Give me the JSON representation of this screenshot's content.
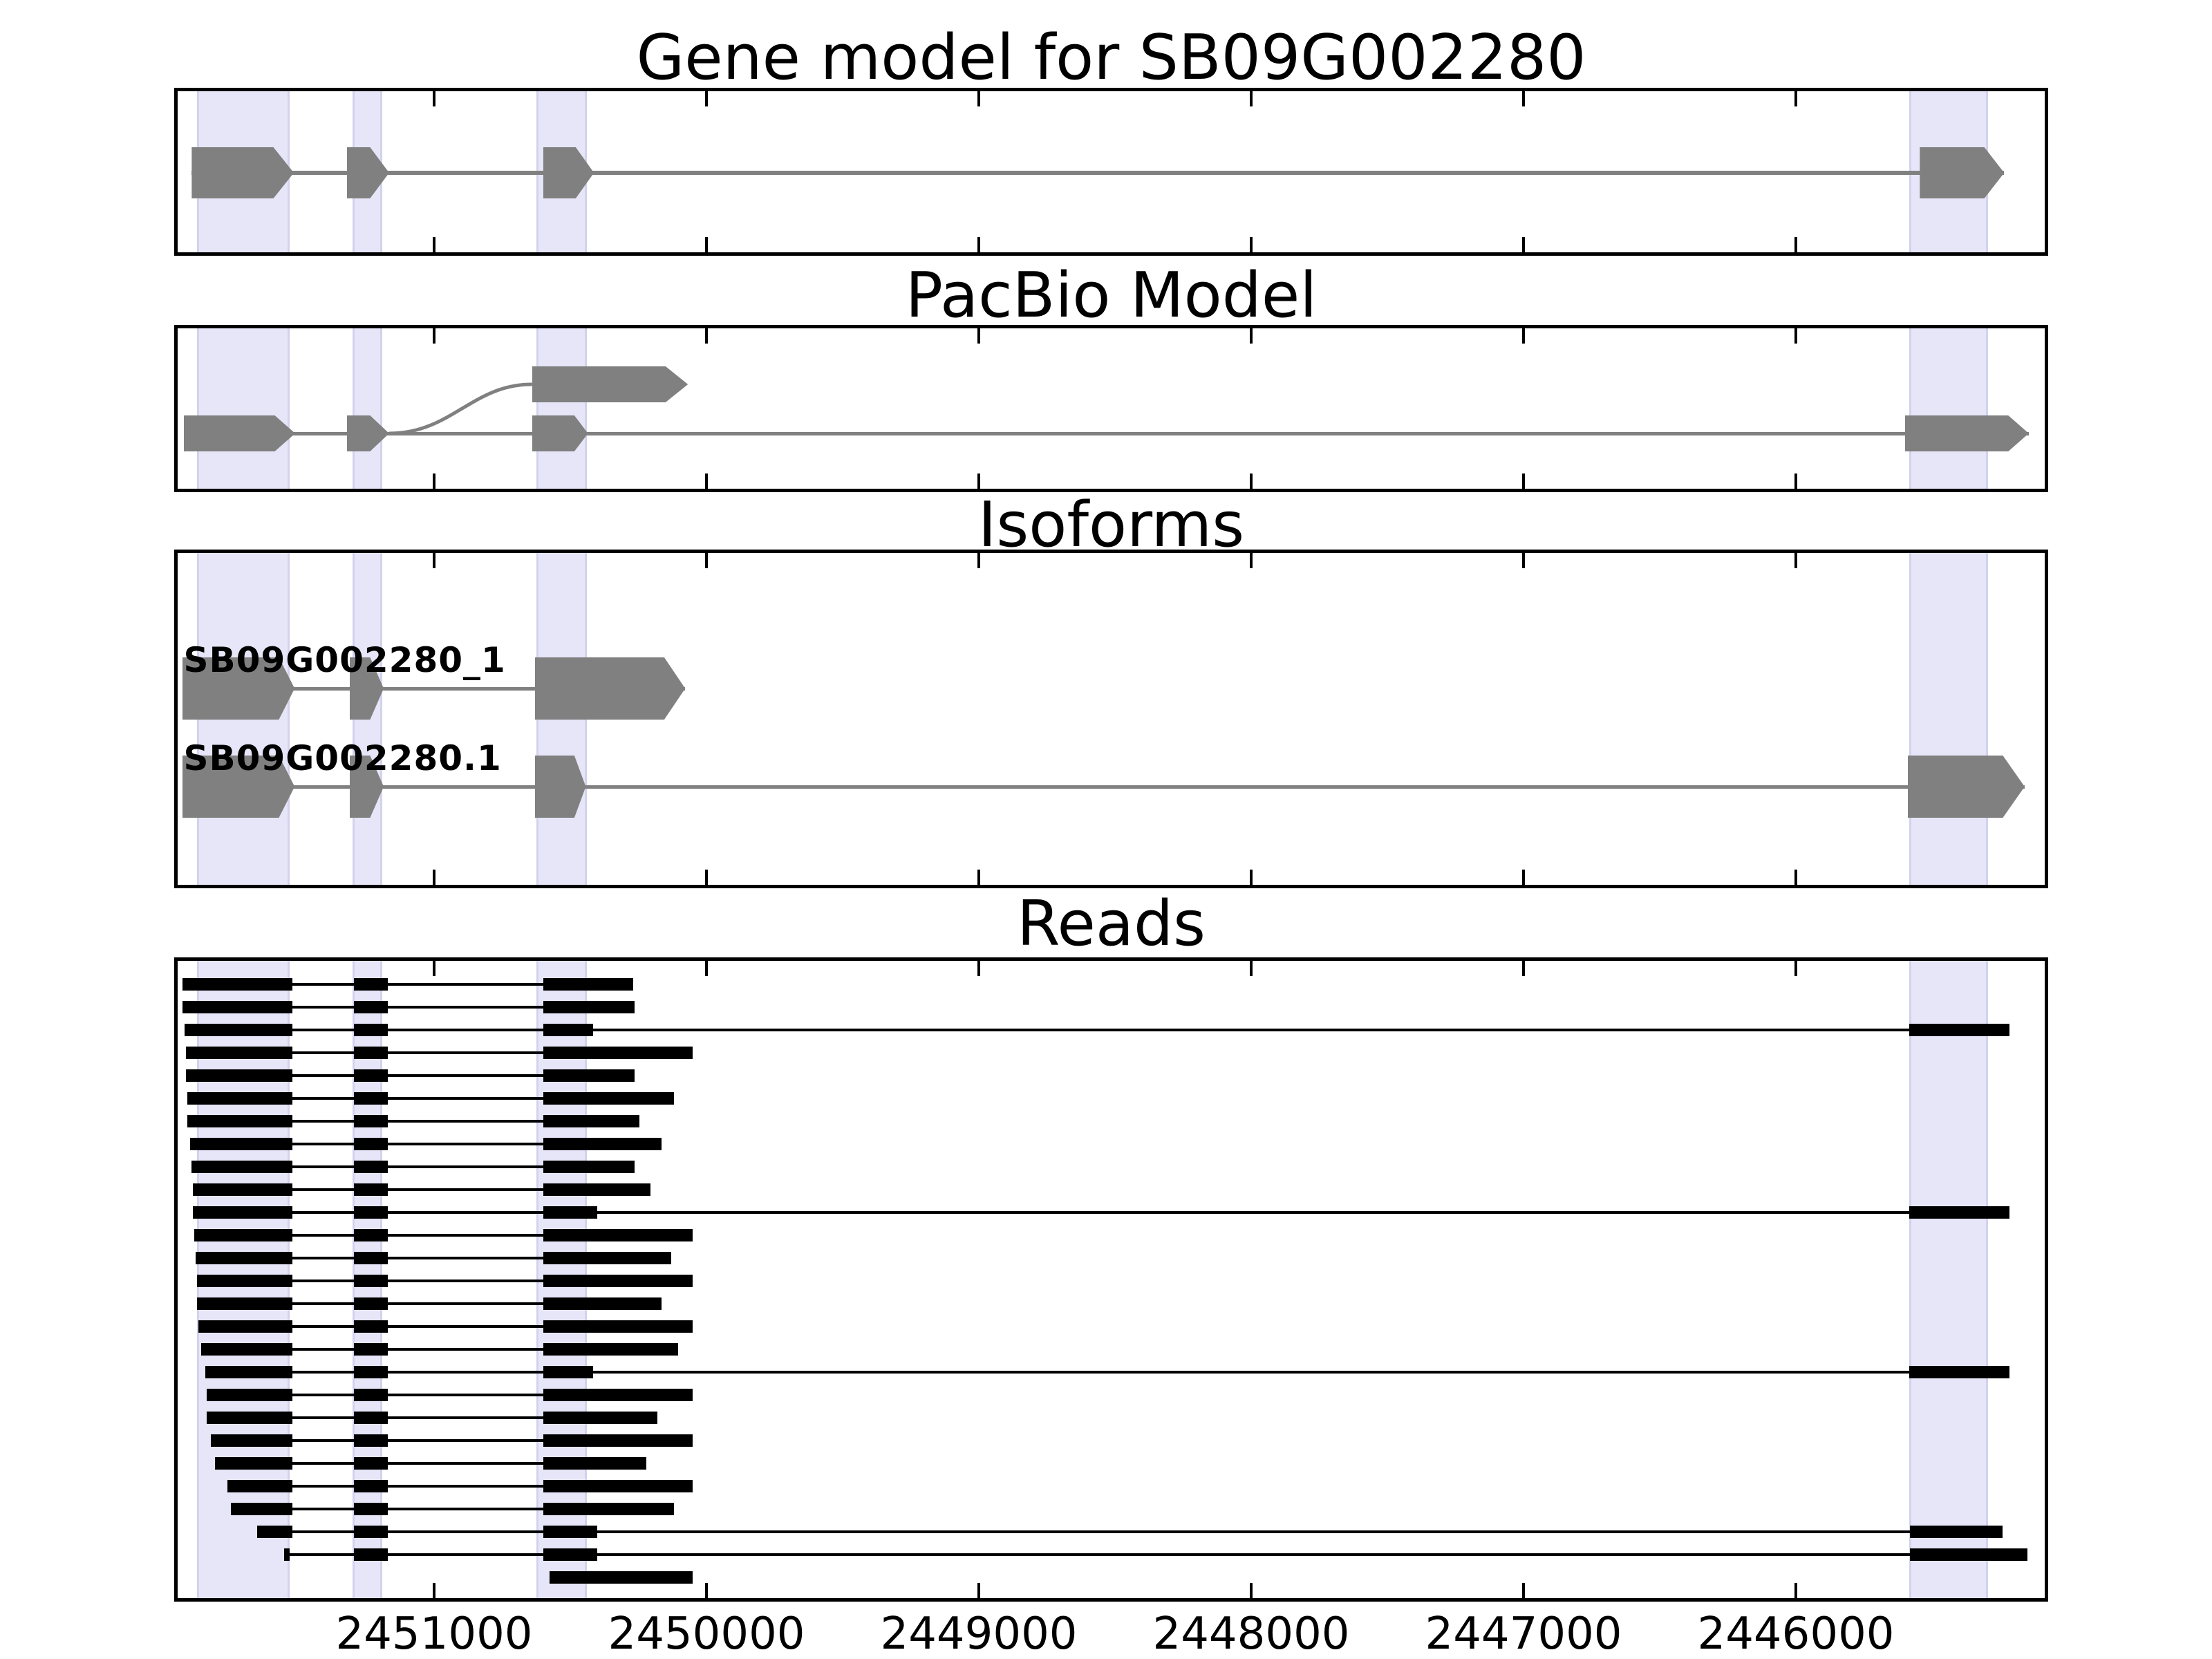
{
  "figure_titles": {
    "gene_model": "Gene model for SB09G002280",
    "pacbio": "PacBio Model",
    "isoforms": "Isoforms",
    "reads": "Reads"
  },
  "colors": {
    "exon_gray": "#808080",
    "intron_gray": "#808080",
    "read_black": "#000000",
    "highlight_fill": "#e6e6f8",
    "highlight_edge": "#d2d2ee",
    "panel_border": "#000000",
    "background": "#ffffff",
    "text": "#000000"
  },
  "chart_data": {
    "type": "genomic-tracks",
    "title": "Gene model for SB09G002280",
    "x_axis": {
      "reversed": true,
      "xlim": [
        2451950,
        2445090
      ],
      "ticks": [
        2451000,
        2450000,
        2449000,
        2448000,
        2447000,
        2446000
      ],
      "tick_labels": [
        "2451000",
        "2450000",
        "2449000",
        "2448000",
        "2447000",
        "2446000"
      ],
      "grid": false
    },
    "highlighted_regions": [
      [
        2451870,
        2451530
      ],
      [
        2451300,
        2451190
      ],
      [
        2450625,
        2450440
      ],
      [
        2445585,
        2445295
      ]
    ],
    "panels": [
      {
        "key": "gene_model",
        "title": "Gene model for SB09G002280",
        "transcripts": [
          {
            "label": "",
            "row": 0,
            "exons": [
              [
                2451890,
                2451590,
                2451515
              ],
              [
                2451320,
                2451235,
                2451165
              ],
              [
                2450600,
                2450480,
                2450413
              ],
              [
                2445545,
                2445308,
                2445235
              ]
            ]
          }
        ]
      },
      {
        "key": "pacbio",
        "title": "PacBio Model",
        "transcripts": [
          {
            "label": "",
            "row": 0,
            "no_line": true,
            "exons": [
              [
                2450640,
                2450150,
                2450068
              ]
            ]
          },
          {
            "label": "",
            "row": 1,
            "exons": [
              [
                2451920,
                2451585,
                2451510
              ],
              [
                2451320,
                2451235,
                2451165
              ],
              [
                2450640,
                2450485,
                2450435
              ],
              [
                2445600,
                2445220,
                2445145
              ]
            ]
          }
        ],
        "junction_curve": {
          "from_coord": 2451165,
          "to_coord": 2450640,
          "from_row": 1,
          "to_row": 0
        }
      },
      {
        "key": "isoforms",
        "title": "Isoforms",
        "transcripts": [
          {
            "label": "SB09G002280_1",
            "row": 0,
            "exons": [
              [
                2451925,
                2451570,
                2451512
              ],
              [
                2451310,
                2451235,
                2451185
              ],
              [
                2450630,
                2450155,
                2450078
              ]
            ]
          },
          {
            "label": "SB09G002280.1",
            "row": 1,
            "exons": [
              [
                2451925,
                2451570,
                2451512
              ],
              [
                2451310,
                2451235,
                2451185
              ],
              [
                2450630,
                2450485,
                2450443
              ],
              [
                2445590,
                2445240,
                2445160
              ]
            ]
          }
        ]
      },
      {
        "key": "reads",
        "title": "Reads",
        "shared_blocks": {
          "block1_end": 2451520,
          "block2": [
            2451295,
            2451170
          ],
          "block3_start": 2450600
        },
        "reads": [
          {
            "s": 2451925,
            "e": 2450270
          },
          {
            "s": 2451925,
            "e": 2450265
          },
          {
            "s": 2451915,
            "e": 2450415,
            "f": [
              2445585,
              2445215
            ]
          },
          {
            "s": 2451910,
            "e": 2450050
          },
          {
            "s": 2451910,
            "e": 2450265
          },
          {
            "s": 2451905,
            "e": 2450120
          },
          {
            "s": 2451905,
            "e": 2450245
          },
          {
            "s": 2451895,
            "e": 2450165
          },
          {
            "s": 2451890,
            "e": 2450265
          },
          {
            "s": 2451885,
            "e": 2450205
          },
          {
            "s": 2451885,
            "e": 2450400,
            "f": [
              2445585,
              2445215
            ]
          },
          {
            "s": 2451880,
            "e": 2450050
          },
          {
            "s": 2451875,
            "e": 2450130
          },
          {
            "s": 2451870,
            "e": 2450050
          },
          {
            "s": 2451870,
            "e": 2450165
          },
          {
            "s": 2451865,
            "e": 2450050
          },
          {
            "s": 2451855,
            "e": 2450105
          },
          {
            "s": 2451840,
            "e": 2450415,
            "f": [
              2445585,
              2445215
            ]
          },
          {
            "s": 2451835,
            "e": 2450050
          },
          {
            "s": 2451835,
            "e": 2450180
          },
          {
            "s": 2451820,
            "e": 2450050
          },
          {
            "s": 2451805,
            "e": 2450220
          },
          {
            "s": 2451760,
            "e": 2450050
          },
          {
            "s": 2451745,
            "e": 2450120
          },
          {
            "s": 2451650,
            "e": 2450400,
            "f": [
              2445580,
              2445240
            ]
          },
          {
            "s": 2451550,
            "stub": 2451530,
            "e": 2450400,
            "f": [
              2445580,
              2445150
            ]
          },
          {
            "single": [
              2450575,
              2450050
            ]
          }
        ]
      }
    ]
  }
}
